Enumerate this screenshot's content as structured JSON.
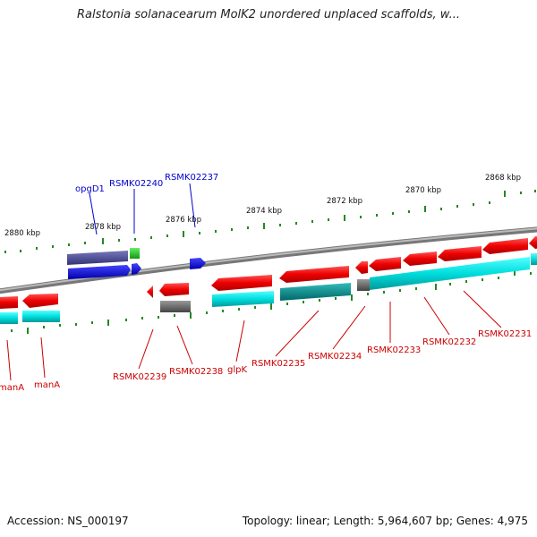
{
  "title": "Ralstonia solanacearum MolK2 unordered unplaced scaffolds, w...",
  "footer": {
    "accession": "Accession: NS_000197",
    "topology": "Topology: linear; Length: 5,964,607 bp; Genes: 4,975"
  },
  "scale": {
    "ticks": [
      {
        "label": "2880 kbp"
      },
      {
        "label": "2878 kbp"
      },
      {
        "label": "2876 kbp"
      },
      {
        "label": "2874 kbp"
      },
      {
        "label": "2872 kbp"
      },
      {
        "label": "2870 kbp"
      },
      {
        "label": "2868 kbp"
      }
    ]
  },
  "genes_top": [
    {
      "label": "opgD1",
      "color": "#0000cc"
    },
    {
      "label": "RSMK02240",
      "color": "#0000cc"
    },
    {
      "label": "RSMK02237",
      "color": "#0000cc"
    }
  ],
  "genes_bottom": [
    {
      "label": "manA",
      "color": "#cc0000"
    },
    {
      "label": "manA",
      "color": "#cc0000"
    },
    {
      "label": "RSMK02239",
      "color": "#cc0000"
    },
    {
      "label": "RSMK02238",
      "color": "#cc0000"
    },
    {
      "label": "glpK",
      "color": "#cc0000"
    },
    {
      "label": "RSMK02235",
      "color": "#cc0000"
    },
    {
      "label": "RSMK02234",
      "color": "#cc0000"
    },
    {
      "label": "RSMK02233",
      "color": "#cc0000"
    },
    {
      "label": "RSMK02232",
      "color": "#cc0000"
    },
    {
      "label": "RSMK02231",
      "color": "#cc0000"
    }
  ],
  "colors": {
    "forward_strand": "#0000ee",
    "reverse_strand": "#ee0000",
    "rna": "#00dddd",
    "pseudo": "#666666",
    "scale_ticks": "#228822",
    "chromosome": "#888888"
  }
}
